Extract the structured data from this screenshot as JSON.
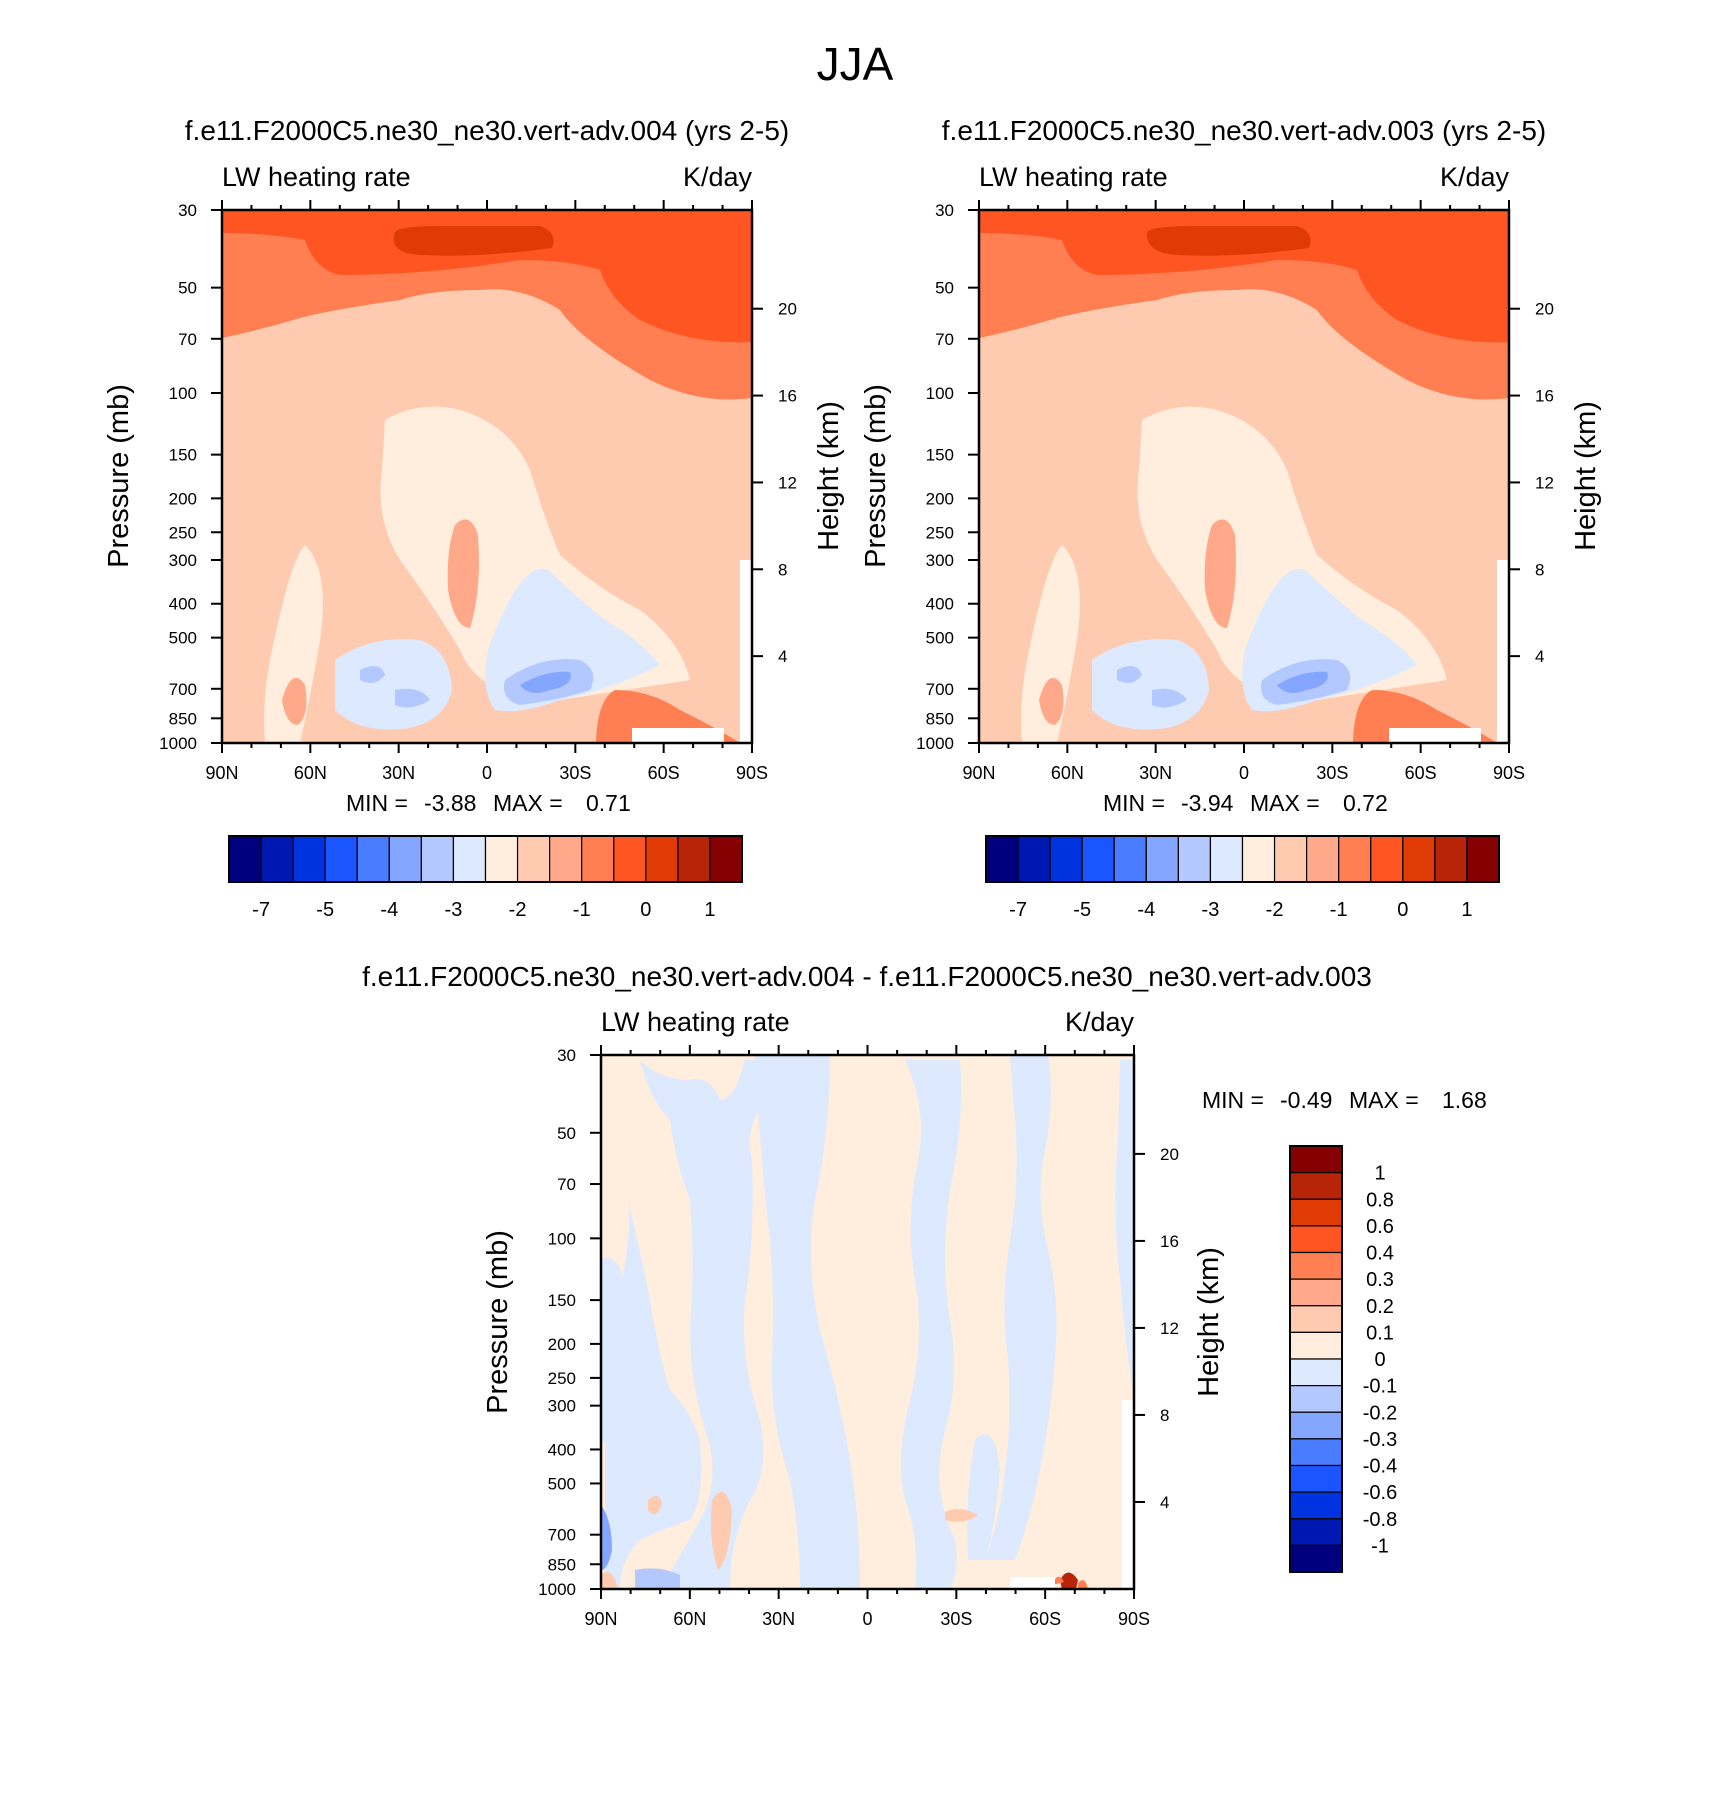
{
  "figure": {
    "title": "JJA"
  },
  "chart_data": [
    {
      "type": "heatmap",
      "id": "p1",
      "title": "f.e11.F2000C5.ne30_ne30.vert-adv.004 (yrs 2-5)",
      "left_label": "LW heating rate",
      "right_label": "K/day",
      "ylabel": "Pressure (mb)",
      "ylabel2": "Height (km)",
      "y_ticks": [
        "30",
        "50",
        "70",
        "100",
        "150",
        "200",
        "250",
        "300",
        "400",
        "500",
        "700",
        "850",
        "1000"
      ],
      "height_ticks": [
        "20",
        "16",
        "12",
        "8",
        "4"
      ],
      "x_ticks": [
        "90N",
        "60N",
        "30N",
        "0",
        "30S",
        "60S",
        "90S"
      ],
      "stats": {
        "min_label": "MIN =",
        "min": "-3.88",
        "max_label": "MAX =",
        "max": "0.71"
      },
      "colorbar": {
        "orientation": "horizontal",
        "labels": [
          "-7",
          "-5",
          "-4",
          "-3",
          "-2",
          "-1",
          "0",
          "1"
        ],
        "colors": [
          "#00007f",
          "#0018b2",
          "#0033e0",
          "#1a55ff",
          "#4a7cff",
          "#84a6ff",
          "#b3c8ff",
          "#dde9ff",
          "#ffeedd",
          "#ffcbb0",
          "#ffa98a",
          "#ff7f52",
          "#ff5523",
          "#e03a05",
          "#b82408",
          "#850000"
        ]
      }
    },
    {
      "type": "heatmap",
      "id": "p2",
      "title": "f.e11.F2000C5.ne30_ne30.vert-adv.003 (yrs 2-5)",
      "left_label": "LW heating rate",
      "right_label": "K/day",
      "ylabel": "Pressure (mb)",
      "ylabel2": "Height (km)",
      "y_ticks": [
        "30",
        "50",
        "70",
        "100",
        "150",
        "200",
        "250",
        "300",
        "400",
        "500",
        "700",
        "850",
        "1000"
      ],
      "height_ticks": [
        "20",
        "16",
        "12",
        "8",
        "4"
      ],
      "x_ticks": [
        "90N",
        "60N",
        "30N",
        "0",
        "30S",
        "60S",
        "90S"
      ],
      "stats": {
        "min_label": "MIN =",
        "min": "-3.94",
        "max_label": "MAX =",
        "max": "0.72"
      },
      "colorbar": {
        "orientation": "horizontal",
        "labels": [
          "-7",
          "-5",
          "-4",
          "-3",
          "-2",
          "-1",
          "0",
          "1"
        ],
        "colors": [
          "#00007f",
          "#0018b2",
          "#0033e0",
          "#1a55ff",
          "#4a7cff",
          "#84a6ff",
          "#b3c8ff",
          "#dde9ff",
          "#ffeedd",
          "#ffcbb0",
          "#ffa98a",
          "#ff7f52",
          "#ff5523",
          "#e03a05",
          "#b82408",
          "#850000"
        ]
      }
    },
    {
      "type": "heatmap",
      "id": "p3",
      "title": "f.e11.F2000C5.ne30_ne30.vert-adv.004 - f.e11.F2000C5.ne30_ne30.vert-adv.003",
      "left_label": "LW heating rate",
      "right_label": "K/day",
      "ylabel": "Pressure (mb)",
      "ylabel2": "Height (km)",
      "y_ticks": [
        "30",
        "50",
        "70",
        "100",
        "150",
        "200",
        "250",
        "300",
        "400",
        "500",
        "700",
        "850",
        "1000"
      ],
      "height_ticks": [
        "20",
        "16",
        "12",
        "8",
        "4"
      ],
      "x_ticks": [
        "90N",
        "60N",
        "30N",
        "0",
        "30S",
        "60S",
        "90S"
      ],
      "stats": {
        "min_label": "MIN =",
        "min": "-0.49",
        "max_label": "MAX =",
        "max": "1.68"
      },
      "colorbar": {
        "orientation": "vertical",
        "labels": [
          "1",
          "0.8",
          "0.6",
          "0.4",
          "0.3",
          "0.2",
          "0.1",
          "0",
          "-0.1",
          "-0.2",
          "-0.3",
          "-0.4",
          "-0.6",
          "-0.8",
          "-1"
        ],
        "colors": [
          "#850000",
          "#b82408",
          "#e03a05",
          "#ff5523",
          "#ff7f52",
          "#ffa98a",
          "#ffcbb0",
          "#ffeedd",
          "#dde9ff",
          "#b3c8ff",
          "#84a6ff",
          "#4a7cff",
          "#1a55ff",
          "#0033e0",
          "#0018b2",
          "#00007f"
        ]
      }
    }
  ]
}
